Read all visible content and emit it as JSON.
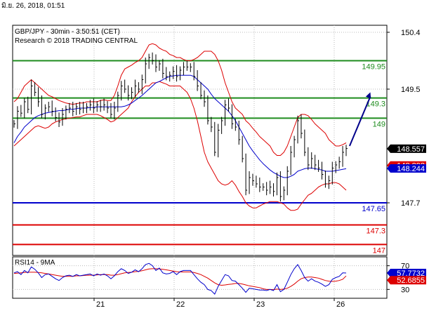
{
  "timestamp": "มิ.ย. 26, 2018, 01:51",
  "chart_data": {
    "type": "line",
    "title": "GBP/JPY - 30min - 3:50:51 (CET)",
    "subtitle": "Research © 2018 TRADING CENTRAL",
    "y_ticks": [
      "150.4",
      "149.5",
      "147.7"
    ],
    "y_tick_values": [
      150.4,
      149.5,
      147.7
    ],
    "x_ticks": [
      "21",
      "22",
      "23",
      "26"
    ],
    "ylim": [
      147.0,
      150.5
    ],
    "grid": true,
    "colors": {
      "price": "#000000",
      "bollinger": "#dd0000",
      "moving_average": "#0000cc",
      "resistance": "#1e8c1e",
      "pivot": "#0000cc",
      "support": "#dd0000",
      "forecast_arrow": "#00008b",
      "rsi_line": "#0000cc",
      "rsi_ma": "#dd0000"
    },
    "horizontal_levels": [
      {
        "label": "149.95",
        "value": 149.95,
        "kind": "resistance"
      },
      {
        "label": "149.3",
        "value": 149.36,
        "kind": "resistance"
      },
      {
        "label": "149",
        "value": 149.04,
        "kind": "resistance"
      },
      {
        "label": "147.65",
        "value": 147.7,
        "kind": "pivot"
      },
      {
        "label": "147.3",
        "value": 147.35,
        "kind": "support"
      },
      {
        "label": "147",
        "value": 147.04,
        "kind": "support"
      }
    ],
    "price_badges": [
      {
        "label": "148.557",
        "value": 148.557,
        "bg": "#000000"
      },
      {
        "label": "148.292",
        "value": 148.292,
        "bg": "#dd0000"
      },
      {
        "label": "148.244",
        "value": 148.244,
        "bg": "#0000cc"
      }
    ],
    "close_series": [
      148.95,
      149.15,
      149.12,
      149.3,
      149.18,
      149.55,
      149.45,
      149.3,
      149.1,
      149.2,
      149.22,
      149.15,
      149.05,
      148.98,
      149.1,
      149.18,
      149.2,
      149.15,
      149.22,
      149.18,
      149.2,
      149.22,
      149.25,
      149.2,
      149.25,
      149.22,
      149.25,
      149.2,
      149.1,
      149.2,
      149.4,
      149.55,
      149.5,
      149.4,
      149.45,
      149.55,
      149.5,
      149.65,
      149.9,
      150.0,
      149.95,
      149.85,
      149.9,
      149.75,
      149.7,
      149.72,
      149.78,
      149.7,
      149.8,
      149.85,
      149.85,
      149.85,
      149.7,
      149.55,
      149.4,
      149.3,
      149.0,
      148.9,
      148.5,
      148.85,
      149.0,
      149.25,
      149.2,
      148.95,
      148.9,
      148.7,
      148.4,
      147.9,
      148.1,
      148.05,
      148.0,
      147.95,
      147.95,
      147.9,
      147.95,
      147.88,
      148.1,
      147.8,
      147.9,
      148.2,
      148.5,
      148.7,
      149.0,
      148.8,
      148.5,
      148.3,
      148.4,
      148.3,
      148.25,
      148.15,
      148.0,
      148.05,
      148.25,
      148.3,
      148.35,
      148.5,
      148.56
    ],
    "bollinger_upper": [
      149.3,
      149.35,
      149.45,
      149.55,
      149.6,
      149.65,
      149.6,
      149.55,
      149.5,
      149.45,
      149.4,
      149.38,
      149.35,
      149.32,
      149.3,
      149.28,
      149.27,
      149.26,
      149.27,
      149.28,
      149.28,
      149.3,
      149.3,
      149.3,
      149.3,
      149.32,
      149.33,
      149.32,
      149.32,
      149.4,
      149.55,
      149.72,
      149.82,
      149.85,
      149.88,
      149.92,
      149.95,
      150.0,
      150.1,
      150.2,
      150.22,
      150.2,
      150.15,
      150.12,
      150.1,
      150.05,
      150.03,
      150.0,
      150.0,
      149.97,
      149.95,
      149.95,
      149.97,
      150.0,
      150.05,
      150.1,
      150.1,
      150.1,
      150.05,
      149.95,
      149.8,
      149.6,
      149.45,
      149.3,
      149.2,
      149.15,
      149.1,
      149.0,
      148.95,
      148.88,
      148.82,
      148.75,
      148.7,
      148.65,
      148.6,
      148.5,
      148.45,
      148.45,
      148.5,
      148.6,
      148.75,
      148.9,
      149.05,
      149.1,
      149.1,
      149.08,
      149.02,
      148.95,
      148.9,
      148.85,
      148.8,
      148.7,
      148.65,
      148.6,
      148.6,
      148.62,
      148.65
    ],
    "bollinger_lower": [
      148.6,
      148.65,
      148.7,
      148.75,
      148.8,
      148.85,
      148.9,
      148.92,
      148.9,
      148.88,
      148.9,
      148.95,
      148.98,
      149.0,
      149.02,
      149.03,
      149.04,
      149.05,
      149.06,
      149.06,
      149.08,
      149.1,
      149.1,
      149.1,
      149.1,
      149.08,
      149.05,
      149.02,
      148.98,
      149.0,
      149.05,
      149.1,
      149.15,
      149.2,
      149.3,
      149.38,
      149.45,
      149.5,
      149.55,
      149.55,
      149.6,
      149.6,
      149.62,
      149.6,
      149.58,
      149.55,
      149.55,
      149.55,
      149.55,
      149.5,
      149.45,
      149.35,
      149.2,
      149.0,
      148.75,
      148.5,
      148.35,
      148.25,
      148.15,
      148.05,
      148.0,
      147.98,
      148.0,
      148.05,
      147.98,
      147.88,
      147.8,
      147.7,
      147.65,
      147.62,
      147.62,
      147.65,
      147.68,
      147.7,
      147.72,
      147.72,
      147.72,
      147.7,
      147.68,
      147.62,
      147.58,
      147.58,
      147.6,
      147.68,
      147.75,
      147.82,
      147.85,
      147.9,
      147.95,
      147.98,
      148.0,
      148.0,
      148.02,
      148.02,
      148.0,
      147.95,
      147.9
    ],
    "moving_average": [
      148.65,
      148.75,
      148.82,
      148.9,
      148.95,
      149.0,
      149.05,
      149.08,
      149.1,
      149.12,
      149.13,
      149.14,
      149.15,
      149.16,
      149.16,
      149.17,
      149.18,
      149.18,
      149.19,
      149.2,
      149.2,
      149.2,
      149.21,
      149.21,
      149.22,
      149.22,
      149.22,
      149.22,
      149.22,
      149.22,
      149.22,
      149.22,
      149.23,
      149.25,
      149.28,
      149.32,
      149.36,
      149.4,
      149.45,
      149.5,
      149.55,
      149.6,
      149.62,
      149.65,
      149.68,
      149.7,
      149.71,
      149.72,
      149.72,
      149.72,
      149.72,
      149.72,
      149.7,
      149.65,
      149.6,
      149.55,
      149.5,
      149.42,
      149.35,
      149.3,
      149.25,
      149.2,
      149.15,
      149.08,
      149.0,
      148.9,
      148.8,
      148.7,
      148.6,
      148.52,
      148.45,
      148.38,
      148.32,
      148.27,
      148.22,
      148.18,
      148.15,
      148.12,
      148.1,
      148.1,
      148.12,
      148.15,
      148.2,
      148.22,
      148.24,
      148.25,
      148.25,
      148.24,
      148.23,
      148.22,
      148.2,
      148.2,
      148.2,
      148.21,
      148.22,
      148.23,
      148.24
    ],
    "forecast_arrow": {
      "from": {
        "index": 97,
        "value": 148.6
      },
      "to": {
        "index": 103,
        "value": 149.45
      }
    },
    "rsi": {
      "label": "RSI14 - 9MA",
      "y_ticks": [
        "70",
        "30"
      ],
      "ylim": [
        15,
        85
      ],
      "badges": [
        {
          "label": "57.7732",
          "value": 57.7732,
          "bg": "#0000cc"
        },
        {
          "label": "52.6855",
          "value": 52.6855,
          "bg": "#dd0000"
        }
      ],
      "values": [
        58,
        60,
        55,
        62,
        58,
        68,
        64,
        58,
        50,
        55,
        56,
        52,
        48,
        45,
        50,
        53,
        54,
        52,
        55,
        53,
        54,
        55,
        56,
        53,
        56,
        54,
        56,
        53,
        48,
        53,
        60,
        65,
        62,
        57,
        59,
        63,
        60,
        65,
        72,
        74,
        70,
        62,
        66,
        58,
        56,
        57,
        60,
        55,
        60,
        62,
        62,
        62,
        55,
        48,
        42,
        38,
        30,
        28,
        22,
        35,
        45,
        55,
        53,
        45,
        44,
        38,
        32,
        25,
        32,
        31,
        30,
        29,
        29,
        28,
        30,
        28,
        38,
        26,
        30,
        42,
        55,
        65,
        72,
        62,
        50,
        44,
        48,
        44,
        42,
        39,
        35,
        38,
        47,
        50,
        52,
        58,
        57.77
      ],
      "ma": [
        57,
        57.5,
        58,
        58.5,
        59,
        59,
        59,
        58.5,
        58,
        57,
        56,
        55,
        54,
        53,
        52,
        52,
        52,
        52,
        53,
        53,
        53.5,
        54,
        54,
        54,
        54.5,
        55,
        55,
        55,
        54,
        54,
        55,
        56.5,
        58,
        58.5,
        59,
        60,
        60.5,
        61.5,
        63,
        64.5,
        65,
        65,
        64.5,
        64,
        63,
        62,
        61,
        60,
        59.5,
        59.5,
        59.5,
        59.5,
        58.5,
        57,
        55,
        52,
        49,
        45,
        41,
        38,
        37,
        37.5,
        38.5,
        39,
        40,
        40,
        39,
        37.5,
        36,
        35,
        34,
        33,
        31,
        30,
        30,
        29.5,
        30.5,
        30,
        30.5,
        32,
        35,
        39,
        44,
        48,
        50,
        51,
        51,
        50,
        49,
        47,
        45,
        44,
        43.5,
        44,
        45,
        47,
        52.69
      ]
    }
  }
}
